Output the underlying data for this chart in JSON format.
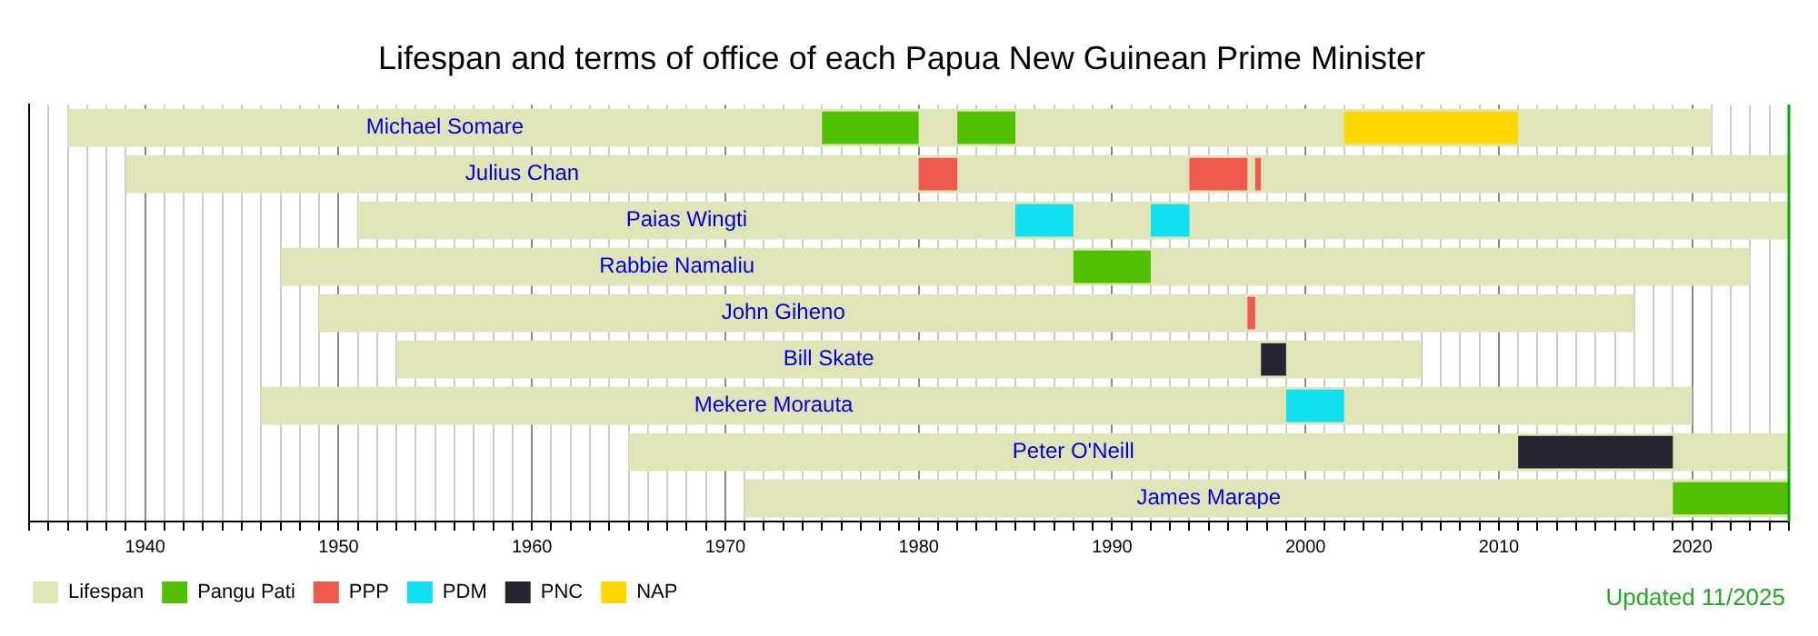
{
  "chart_data": {
    "type": "bar",
    "orientation": "horizontal",
    "title": "Lifespan and terms of office of each Papua New Guinean Prime Minister",
    "categories": [
      "Michael Somare",
      "Julius Chan",
      "Paias Wingti",
      "Rabbie Namaliu",
      "John Giheno",
      "Bill Skate",
      "Mekere Morauta",
      "Peter O'Neill",
      "James Marape"
    ],
    "series": [
      {
        "name": "Lifespan",
        "color": "#e1e4b6",
        "base": [
          1936,
          1939,
          1951,
          1947,
          1949,
          1953,
          1946,
          1965,
          1971
        ],
        "values": [
          85,
          86,
          74,
          76,
          68,
          53,
          74,
          60,
          54
        ]
      },
      {
        "name": "Pangu Pati",
        "color": "#50c000",
        "base": [
          1975,
          null,
          null,
          1988,
          null,
          null,
          null,
          null,
          2019
        ],
        "values": [
          5,
          null,
          null,
          4,
          null,
          null,
          null,
          null,
          6
        ]
      },
      {
        "color": "#50c000",
        "base": [
          1982,
          null,
          null,
          null,
          null,
          null,
          null,
          null,
          null
        ],
        "values": [
          3,
          null,
          null,
          null,
          null,
          null,
          null,
          null,
          null
        ]
      },
      {
        "name": "PPP",
        "color": "#ee5b4e",
        "base": [
          null,
          1980,
          null,
          null,
          1997,
          null,
          null,
          null,
          null
        ],
        "values": [
          null,
          2,
          null,
          null,
          0.4,
          null,
          null,
          null,
          null
        ]
      },
      {
        "color": "#ee5b4e",
        "base": [
          null,
          1994,
          null,
          null,
          null,
          null,
          null,
          null,
          null
        ],
        "values": [
          null,
          3,
          null,
          null,
          null,
          null,
          null,
          null,
          null
        ]
      },
      {
        "color": "#ee5b4e",
        "base": [
          null,
          1997.4,
          null,
          null,
          null,
          null,
          null,
          null,
          null
        ],
        "values": [
          null,
          0.3,
          null,
          null,
          null,
          null,
          null,
          null,
          null
        ]
      },
      {
        "name": "PDM",
        "color": "#10e0f0",
        "base": [
          null,
          null,
          1985,
          null,
          null,
          null,
          1999,
          null,
          null
        ],
        "values": [
          null,
          null,
          3,
          null,
          null,
          null,
          3,
          null,
          null
        ]
      },
      {
        "color": "#10e0f0",
        "base": [
          null,
          null,
          1992,
          null,
          null,
          null,
          null,
          null,
          null
        ],
        "values": [
          null,
          null,
          2,
          null,
          null,
          null,
          null,
          null,
          null
        ]
      },
      {
        "name": "PNC",
        "color": "#262633",
        "base": [
          null,
          null,
          null,
          null,
          null,
          1997.7,
          null,
          2011,
          null
        ],
        "values": [
          null,
          null,
          null,
          null,
          null,
          1.3,
          null,
          8,
          null
        ]
      },
      {
        "name": "NAP",
        "color": "#ffd700",
        "base": [
          2002,
          null,
          null,
          null,
          null,
          null,
          null,
          null,
          null
        ],
        "values": [
          9,
          null,
          null,
          null,
          null,
          null,
          null,
          null,
          null
        ]
      }
    ],
    "xlim": [
      1934,
      2025
    ],
    "xticks": [
      {
        "value": 1934,
        "label": null
      },
      {
        "value": 1935,
        "label": null
      },
      {
        "value": 1936,
        "label": null
      },
      {
        "value": 1937,
        "label": null
      },
      {
        "value": 1938,
        "label": null
      },
      {
        "value": 1939,
        "label": null
      },
      1940,
      {
        "value": 1941,
        "label": null
      },
      {
        "value": 1942,
        "label": null
      },
      {
        "value": 1943,
        "label": null
      },
      {
        "value": 1944,
        "label": null
      },
      {
        "value": 1945,
        "label": null
      },
      {
        "value": 1946,
        "label": null
      },
      {
        "value": 1947,
        "label": null
      },
      {
        "value": 1948,
        "label": null
      },
      {
        "value": 1949,
        "label": null
      },
      1950,
      {
        "value": 1951,
        "label": null
      },
      {
        "value": 1952,
        "label": null
      },
      {
        "value": 1953,
        "label": null
      },
      {
        "value": 1954,
        "label": null
      },
      {
        "value": 1955,
        "label": null
      },
      {
        "value": 1956,
        "label": null
      },
      {
        "value": 1957,
        "label": null
      },
      {
        "value": 1958,
        "label": null
      },
      {
        "value": 1959,
        "label": null
      },
      1960,
      {
        "value": 1961,
        "label": null
      },
      {
        "value": 1962,
        "label": null
      },
      {
        "value": 1963,
        "label": null
      },
      {
        "value": 1964,
        "label": null
      },
      {
        "value": 1965,
        "label": null
      },
      {
        "value": 1966,
        "label": null
      },
      {
        "value": 1967,
        "label": null
      },
      {
        "value": 1968,
        "label": null
      },
      {
        "value": 1969,
        "label": null
      },
      1970,
      {
        "value": 1971,
        "label": null
      },
      {
        "value": 1972,
        "label": null
      },
      {
        "value": 1973,
        "label": null
      },
      {
        "value": 1974,
        "label": null
      },
      {
        "value": 1975,
        "label": null
      },
      {
        "value": 1976,
        "label": null
      },
      {
        "value": 1977,
        "label": null
      },
      {
        "value": 1978,
        "label": null
      },
      {
        "value": 1979,
        "label": null
      },
      1980,
      {
        "value": 1981,
        "label": null
      },
      {
        "value": 1982,
        "label": null
      },
      {
        "value": 1983,
        "label": null
      },
      {
        "value": 1984,
        "label": null
      },
      {
        "value": 1985,
        "label": null
      },
      {
        "value": 1986,
        "label": null
      },
      {
        "value": 1987,
        "label": null
      },
      {
        "value": 1988,
        "label": null
      },
      {
        "value": 1989,
        "label": null
      },
      1990,
      {
        "value": 1991,
        "label": null
      },
      {
        "value": 1992,
        "label": null
      },
      {
        "value": 1993,
        "label": null
      },
      {
        "value": 1994,
        "label": null
      },
      {
        "value": 1995,
        "label": null
      },
      {
        "value": 1996,
        "label": null
      },
      {
        "value": 1997,
        "label": null
      },
      {
        "value": 1998,
        "label": null
      },
      {
        "value": 1999,
        "label": null
      },
      2000,
      {
        "value": 2001,
        "label": null
      },
      {
        "value": 2002,
        "label": null
      },
      {
        "value": 2003,
        "label": null
      },
      {
        "value": 2004,
        "label": null
      },
      {
        "value": 2005,
        "label": null
      },
      {
        "value": 2006,
        "label": null
      },
      {
        "value": 2007,
        "label": null
      },
      {
        "value": 2008,
        "label": null
      },
      {
        "value": 2009,
        "label": null
      },
      2010,
      {
        "value": 2011,
        "label": null
      },
      {
        "value": 2012,
        "label": null
      },
      {
        "value": 2013,
        "label": null
      },
      {
        "value": 2014,
        "label": null
      },
      {
        "value": 2015,
        "label": null
      },
      {
        "value": 2016,
        "label": null
      },
      {
        "value": 2017,
        "label": null
      },
      {
        "value": 2018,
        "label": null
      },
      {
        "value": 2019,
        "label": null
      },
      2020,
      {
        "value": 2021,
        "label": null
      },
      {
        "value": 2022,
        "label": null
      },
      {
        "value": 2023,
        "label": null
      },
      {
        "value": 2024,
        "label": null
      },
      {
        "value": 2025,
        "label": null
      }
    ],
    "grid": "x",
    "tick_labels": "x",
    "legend": "bottom left",
    "ref_lines": [
      {
        "axis": "x",
        "value": 2025,
        "color": "#00aa00"
      }
    ],
    "annotations": [
      "Updated 11/2025"
    ]
  }
}
